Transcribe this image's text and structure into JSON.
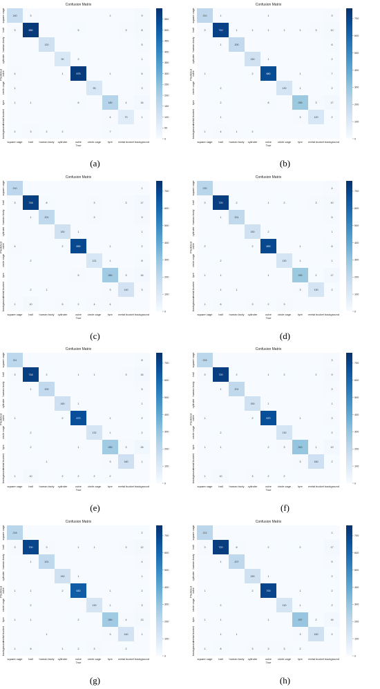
{
  "figure": {
    "panel_labels": [
      "(a)",
      "(b)",
      "(c)",
      "(d)",
      "(e)",
      "(f)",
      "(g)",
      "(h)"
    ]
  },
  "chart_data": [
    {
      "type": "heatmap",
      "title": "Confusion Matrix",
      "xlabel": "True",
      "ylabel": "Predicted",
      "categories": [
        "square cage",
        "ball",
        "human body",
        "cylinder",
        "cube",
        "circle cage",
        "tyre",
        "metal bucket",
        "background"
      ],
      "colorbar_ticks": [
        0,
        50,
        100,
        150,
        200,
        250,
        300,
        350,
        400,
        450,
        500,
        550
      ],
      "vmax": 600,
      "matrix": [
        [
          140,
          3,
          0,
          0,
          0,
          0,
          1,
          0,
          9
        ],
        [
          3,
          580,
          0,
          0,
          5,
          0,
          0,
          3,
          8
        ],
        [
          0,
          0,
          120,
          0,
          0,
          0,
          0,
          0,
          5
        ],
        [
          0,
          0,
          0,
          90,
          2,
          0,
          0,
          0,
          1
        ],
        [
          4,
          0,
          0,
          1,
          575,
          0,
          1,
          0,
          6
        ],
        [
          1,
          0,
          0,
          0,
          0,
          95,
          0,
          0,
          3
        ],
        [
          1,
          1,
          0,
          0,
          6,
          0,
          180,
          4,
          16
        ],
        [
          0,
          0,
          0,
          0,
          0,
          0,
          4,
          70,
          1
        ],
        [
          2,
          3,
          2,
          2,
          0,
          0,
          7,
          0,
          0
        ]
      ]
    },
    {
      "type": "heatmap",
      "title": "Confusion Matrix",
      "xlabel": "True",
      "ylabel": "Predicted",
      "categories": [
        "square cage",
        "ball",
        "human body",
        "cylinder",
        "cube",
        "circle cage",
        "tyre",
        "metal bucket",
        "background"
      ],
      "colorbar_ticks": [
        0,
        100,
        200,
        300,
        400,
        500,
        600,
        700
      ],
      "vmax": 760,
      "matrix": [
        [
          210,
          1,
          0,
          0,
          1,
          0,
          0,
          0,
          3
        ],
        [
          3,
          710,
          1,
          1,
          1,
          1,
          1,
          3,
          10
        ],
        [
          0,
          1,
          200,
          0,
          0,
          0,
          0,
          0,
          6
        ],
        [
          0,
          0,
          0,
          150,
          1,
          0,
          0,
          0,
          2
        ],
        [
          1,
          0,
          0,
          2,
          680,
          0,
          1,
          0,
          7
        ],
        [
          0,
          2,
          0,
          0,
          0,
          130,
          1,
          0,
          2
        ],
        [
          0,
          2,
          0,
          0,
          8,
          0,
          290,
          3,
          17
        ],
        [
          0,
          1,
          0,
          0,
          0,
          0,
          3,
          120,
          2
        ],
        [
          1,
          4,
          1,
          2,
          0,
          0,
          0,
          0,
          0
        ]
      ]
    },
    {
      "type": "heatmap",
      "title": "Confusion Matrix",
      "xlabel": "True",
      "ylabel": "Predicted",
      "categories": [
        "square cage",
        "ball",
        "human body",
        "cylinder",
        "cube",
        "circle cage",
        "tyre",
        "metal bucket",
        "background"
      ],
      "colorbar_ticks": [
        0,
        100,
        200,
        300,
        400,
        500,
        600,
        700
      ],
      "vmax": 760,
      "matrix": [
        [
          210,
          0,
          0,
          0,
          0,
          0,
          0,
          0,
          1
        ],
        [
          3,
          718,
          8,
          0,
          0,
          3,
          0,
          3,
          17
        ],
        [
          0,
          1,
          201,
          0,
          0,
          3,
          0,
          0,
          9
        ],
        [
          0,
          0,
          0,
          150,
          1,
          0,
          0,
          0,
          1
        ],
        [
          4,
          0,
          0,
          2,
          690,
          0,
          1,
          0,
          2
        ],
        [
          0,
          2,
          0,
          0,
          0,
          121,
          1,
          0,
          8
        ],
        [
          0,
          0,
          0,
          0,
          5,
          0,
          280,
          3,
          16
        ],
        [
          0,
          2,
          1,
          0,
          0,
          0,
          3,
          140,
          3
        ],
        [
          1,
          10,
          0,
          5,
          2,
          4,
          4,
          0,
          0
        ]
      ]
    },
    {
      "type": "heatmap",
      "title": "Confusion Matrix",
      "xlabel": "True",
      "ylabel": "Predicted",
      "categories": [
        "square cage",
        "ball",
        "human body",
        "cylinder",
        "cube",
        "circle cage",
        "tyre",
        "metal bucket",
        "background"
      ],
      "colorbar_ticks": [
        0,
        100,
        200,
        300,
        400,
        500,
        600,
        700
      ],
      "vmax": 760,
      "matrix": [
        [
          220,
          0,
          0,
          0,
          0,
          0,
          0,
          0,
          4
        ],
        [
          3,
          720,
          2,
          0,
          1,
          2,
          0,
          3,
          10
        ],
        [
          0,
          1,
          201,
          0,
          0,
          0,
          0,
          0,
          5
        ],
        [
          0,
          0,
          0,
          150,
          2,
          0,
          0,
          0,
          1
        ],
        [
          2,
          0,
          0,
          2,
          690,
          0,
          1,
          0,
          6
        ],
        [
          0,
          2,
          0,
          0,
          0,
          130,
          1,
          0,
          1
        ],
        [
          1,
          1,
          0,
          0,
          1,
          0,
          290,
          2,
          17
        ],
        [
          0,
          1,
          1,
          0,
          0,
          0,
          3,
          130,
          2
        ],
        [
          1,
          6,
          0,
          3,
          2,
          3,
          0,
          0,
          0
        ]
      ]
    },
    {
      "type": "heatmap",
      "title": "Confusion Matrix",
      "xlabel": "True",
      "ylabel": "Predicted",
      "categories": [
        "square cage",
        "ball",
        "human body",
        "cylinder",
        "cube",
        "circle cage",
        "tyre",
        "metal bucket",
        "background"
      ],
      "colorbar_ticks": [
        0,
        100,
        200,
        300,
        400,
        500,
        600,
        700
      ],
      "vmax": 760,
      "matrix": [
        [
          211,
          0,
          0,
          0,
          0,
          0,
          0,
          0,
          8
        ],
        [
          3,
          718,
          2,
          0,
          1,
          1,
          0,
          3,
          16
        ],
        [
          0,
          1,
          200,
          0,
          0,
          0,
          0,
          0,
          5
        ],
        [
          0,
          0,
          0,
          160,
          1,
          0,
          0,
          0,
          1
        ],
        [
          1,
          0,
          0,
          2,
          673,
          0,
          1,
          0,
          2
        ],
        [
          0,
          2,
          0,
          0,
          0,
          132,
          1,
          0,
          2
        ],
        [
          0,
          2,
          0,
          0,
          1,
          0,
          280,
          3,
          26
        ],
        [
          0,
          0,
          1,
          0,
          0,
          0,
          3,
          160,
          1
        ],
        [
          1,
          10,
          0,
          2,
          2,
          2,
          2,
          0,
          0
        ]
      ]
    },
    {
      "type": "heatmap",
      "title": "Confusion Matrix",
      "xlabel": "True",
      "ylabel": "Predicted",
      "categories": [
        "square cage",
        "ball",
        "human body",
        "cylinder",
        "cube",
        "circle cage",
        "tyre",
        "metal bucket",
        "background"
      ],
      "colorbar_ticks": [
        0,
        100,
        200,
        300,
        400,
        500,
        600,
        700
      ],
      "vmax": 760,
      "matrix": [
        [
          215,
          0,
          0,
          0,
          0,
          0,
          0,
          0,
          3
        ],
        [
          3,
          720,
          2,
          0,
          1,
          2,
          0,
          2,
          9
        ],
        [
          0,
          1,
          201,
          0,
          0,
          0,
          0,
          0,
          3
        ],
        [
          0,
          0,
          0,
          150,
          1,
          0,
          0,
          0,
          1
        ],
        [
          1,
          0,
          0,
          2,
          670,
          0,
          1,
          0,
          3
        ],
        [
          0,
          2,
          0,
          0,
          0,
          130,
          0,
          0,
          2
        ],
        [
          1,
          1,
          0,
          0,
          2,
          3,
          300,
          1,
          19
        ],
        [
          0,
          0,
          0,
          0,
          0,
          0,
          3,
          160,
          2
        ],
        [
          1,
          10,
          0,
          3,
          2,
          2,
          0,
          0,
          0
        ]
      ]
    },
    {
      "type": "heatmap",
      "title": "Confusion Matrix",
      "xlabel": "True",
      "ylabel": "Predicted",
      "categories": [
        "square cage",
        "ball",
        "human body",
        "cylinder",
        "cube",
        "circle cage",
        "tyre",
        "metal bucket",
        "background"
      ],
      "colorbar_ticks": [
        0,
        100,
        200,
        300,
        400,
        500,
        600,
        700
      ],
      "vmax": 760,
      "matrix": [
        [
          218,
          0,
          0,
          0,
          0,
          0,
          0,
          0,
          2
        ],
        [
          3,
          700,
          3,
          0,
          1,
          1,
          0,
          3,
          12
        ],
        [
          0,
          1,
          201,
          0,
          0,
          0,
          0,
          0,
          4
        ],
        [
          0,
          0,
          0,
          150,
          1,
          0,
          0,
          0,
          1
        ],
        [
          1,
          1,
          0,
          2,
          630,
          0,
          1,
          0,
          2
        ],
        [
          0,
          2,
          0,
          0,
          0,
          130,
          1,
          0,
          3
        ],
        [
          1,
          1,
          0,
          0,
          2,
          0,
          280,
          4,
          13
        ],
        [
          0,
          0,
          1,
          0,
          0,
          0,
          3,
          140,
          1
        ],
        [
          1,
          8,
          0,
          1,
          2,
          3,
          0,
          2,
          0
        ]
      ]
    },
    {
      "type": "heatmap",
      "title": "Confusion Matrix",
      "xlabel": "True",
      "ylabel": "Predicted",
      "categories": [
        "square cage",
        "ball",
        "human body",
        "cylinder",
        "cube",
        "circle cage",
        "tyre",
        "metal bucket",
        "background"
      ],
      "colorbar_ticks": [
        0,
        100,
        200,
        300,
        400,
        500,
        600,
        700
      ],
      "vmax": 760,
      "matrix": [
        [
          213,
          0,
          0,
          0,
          0,
          0,
          0,
          0,
          1
        ],
        [
          3,
          720,
          8,
          0,
          2,
          0,
          2,
          0,
          17
        ],
        [
          0,
          1,
          207,
          0,
          0,
          0,
          0,
          0,
          5
        ],
        [
          0,
          0,
          0,
          150,
          1,
          0,
          0,
          0,
          2
        ],
        [
          1,
          0,
          0,
          2,
          700,
          0,
          1,
          0,
          2
        ],
        [
          0,
          2,
          0,
          0,
          0,
          130,
          1,
          0,
          2
        ],
        [
          1,
          1,
          0,
          0,
          1,
          0,
          297,
          2,
          16
        ],
        [
          0,
          1,
          1,
          0,
          0,
          0,
          3,
          150,
          2
        ],
        [
          1,
          8,
          0,
          3,
          3,
          3,
          2,
          0,
          0
        ]
      ]
    }
  ]
}
